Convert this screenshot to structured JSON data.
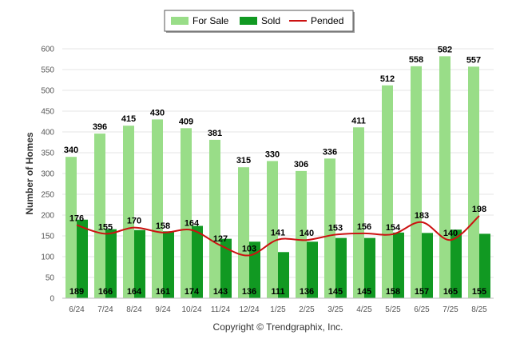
{
  "chart_data": {
    "type": "bar",
    "ylabel": "Number of Homes",
    "ylim": [
      0,
      600
    ],
    "yticks": [
      0,
      50,
      100,
      150,
      200,
      250,
      300,
      350,
      400,
      450,
      500,
      550,
      600
    ],
    "grid": true,
    "legend_position": "top-center",
    "categories": [
      "6/24",
      "7/24",
      "8/24",
      "9/24",
      "10/24",
      "11/24",
      "12/24",
      "1/25",
      "2/25",
      "3/25",
      "4/25",
      "5/25",
      "6/25",
      "7/25",
      "8/25"
    ],
    "series": [
      {
        "name": "For Sale",
        "kind": "bar",
        "color": "#99dd88",
        "values": [
          340,
          396,
          415,
          430,
          409,
          381,
          315,
          330,
          306,
          336,
          411,
          512,
          558,
          582,
          557
        ]
      },
      {
        "name": "Sold",
        "kind": "bar",
        "color": "#119922",
        "values": [
          189,
          166,
          164,
          161,
          174,
          143,
          136,
          111,
          136,
          145,
          145,
          158,
          157,
          165,
          155
        ]
      },
      {
        "name": "Pended",
        "kind": "line",
        "color": "#cc1111",
        "values": [
          176,
          155,
          170,
          158,
          164,
          127,
          103,
          141,
          140,
          153,
          156,
          154,
          183,
          140,
          198
        ]
      }
    ]
  },
  "credit": "Copyright © Trendgraphix, Inc."
}
